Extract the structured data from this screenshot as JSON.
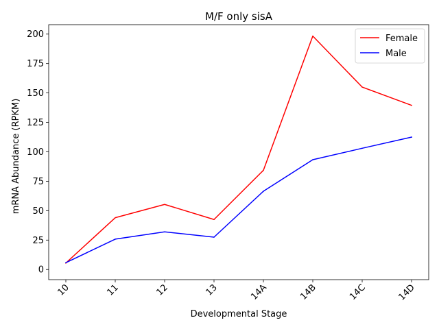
{
  "chart_data": {
    "type": "line",
    "title": "M/F only sisA",
    "xlabel": "Developmental Stage",
    "ylabel": "mRNA Abundance (RPKM)",
    "categories": [
      "10",
      "11",
      "12",
      "13",
      "14A",
      "14B",
      "14C",
      "14D"
    ],
    "ylim": [
      -8.6,
      208
    ],
    "yticks": [
      0,
      25,
      50,
      75,
      100,
      125,
      150,
      175,
      200
    ],
    "grid": false,
    "legend": "top-right",
    "series": [
      {
        "name": "Female",
        "color": "#ff0000",
        "values": [
          5.5,
          44,
          55.3,
          42.5,
          84.3,
          198.3,
          155,
          139.5
        ]
      },
      {
        "name": "Male",
        "color": "#0000ff",
        "values": [
          5.8,
          25.8,
          32,
          27.5,
          66.5,
          93.3,
          103,
          112.5
        ]
      }
    ]
  }
}
